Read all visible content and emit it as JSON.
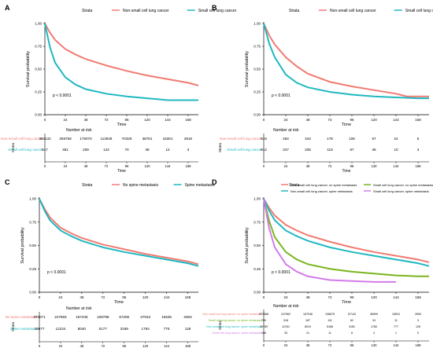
{
  "colors": {
    "red": "#f07b72",
    "teal": "#1fb8c1",
    "green": "#7ab51d",
    "violet": "#d27be8",
    "axis": "#000000"
  },
  "chart_data": [
    {
      "panel": "A",
      "type": "line",
      "legend_title": "Strata",
      "legend_position": "top",
      "xlabel": "Time",
      "ylabel": "Survival probability",
      "xticks": [
        0,
        24,
        48,
        72,
        96,
        120,
        144,
        168
      ],
      "yticks": [
        "0.00",
        "0.25",
        "0.50",
        "0.75",
        "1.00"
      ],
      "xlim": [
        0,
        180
      ],
      "ylim": [
        0,
        1
      ],
      "pvalue": "p < 0.0001",
      "risk_title": "Number at risk",
      "risk_x": [
        0,
        24,
        48,
        72,
        96,
        120,
        144,
        168
      ],
      "series": [
        {
          "name": "Non-small cell lung cancer",
          "color": "#f07b72",
          "x": [
            0,
            6,
            12,
            24,
            36,
            48,
            72,
            96,
            120,
            144,
            168,
            180
          ],
          "y": [
            1.0,
            0.9,
            0.82,
            0.72,
            0.66,
            0.61,
            0.54,
            0.48,
            0.43,
            0.39,
            0.35,
            0.32
          ],
          "risk": [
            "392132",
            "259758",
            "175070",
            "113846",
            "70329",
            "38781",
            "16301",
            "2816"
          ]
        },
        {
          "name": "Small cell lung cancer",
          "color": "#1fb8c1",
          "x": [
            0,
            6,
            12,
            24,
            36,
            48,
            72,
            96,
            120,
            144,
            168,
            180
          ],
          "y": [
            1.0,
            0.74,
            0.57,
            0.41,
            0.33,
            0.28,
            0.23,
            0.2,
            0.18,
            0.16,
            0.16,
            0.16
          ],
          "risk": [
            "617",
            "351",
            "208",
            "122",
            "70",
            "38",
            "12",
            "3"
          ]
        }
      ]
    },
    {
      "panel": "B",
      "type": "line",
      "legend_title": "Strata",
      "legend_position": "top",
      "xlabel": "Time",
      "ylabel": "Survival probability",
      "xticks": [
        0,
        24,
        48,
        72,
        96,
        120,
        144,
        168
      ],
      "yticks": [
        "0.00",
        "0.25",
        "0.50",
        "0.75",
        "1.00"
      ],
      "xlim": [
        0,
        180
      ],
      "ylim": [
        0,
        1
      ],
      "pvalue": "p < 0.0001",
      "risk_title": "Number at risk",
      "risk_x": [
        0,
        24,
        48,
        72,
        96,
        120,
        144,
        168
      ],
      "series": [
        {
          "name": "Non-small cell lung cancer",
          "color": "#f07b72",
          "x": [
            0,
            6,
            12,
            24,
            36,
            48,
            72,
            96,
            120,
            144,
            156,
            168,
            180
          ],
          "y": [
            1.0,
            0.87,
            0.77,
            0.63,
            0.53,
            0.45,
            0.36,
            0.31,
            0.27,
            0.23,
            0.2,
            0.2,
            0.2
          ],
          "risk": [
            "819",
            "484",
            "310",
            "178",
            "106",
            "57",
            "24",
            "5"
          ]
        },
        {
          "name": "Small cell lung cancer",
          "color": "#1fb8c1",
          "x": [
            0,
            6,
            12,
            24,
            36,
            48,
            72,
            96,
            120,
            144,
            168,
            180
          ],
          "y": [
            1.0,
            0.78,
            0.63,
            0.44,
            0.35,
            0.3,
            0.25,
            0.22,
            0.2,
            0.19,
            0.18,
            0.18
          ],
          "risk": [
            "812",
            "347",
            "205",
            "119",
            "67",
            "36",
            "10",
            "3"
          ]
        }
      ]
    },
    {
      "panel": "C",
      "type": "line",
      "legend_title": "Strata",
      "legend_position": "top",
      "xlabel": "Time",
      "ylabel": "Survival probability",
      "xticks": [
        0,
        24,
        48,
        72,
        96,
        120,
        144,
        168
      ],
      "yticks": [
        "0.00",
        "0.25",
        "0.50",
        "0.75",
        "1.00"
      ],
      "xlim": [
        0,
        180
      ],
      "ylim": [
        0,
        1
      ],
      "pvalue": "p < 0.0001",
      "risk_title": "Number at risk",
      "risk_x": [
        0,
        24,
        48,
        72,
        96,
        120,
        144,
        168
      ],
      "series": [
        {
          "name": "No spine metastasis",
          "color": "#f07b72",
          "x": [
            0,
            6,
            12,
            24,
            36,
            48,
            72,
            96,
            120,
            144,
            168,
            180
          ],
          "y": [
            1.0,
            0.89,
            0.8,
            0.69,
            0.63,
            0.58,
            0.51,
            0.46,
            0.41,
            0.37,
            0.33,
            0.3
          ],
          "risk": [
            "373071",
            "247883",
            "167236",
            "108788",
            "67206",
            "37033",
            "15535",
            "2693"
          ]
        },
        {
          "name": "Spine metastasis",
          "color": "#1fb8c1",
          "x": [
            0,
            6,
            12,
            24,
            36,
            48,
            72,
            96,
            120,
            144,
            168,
            180
          ],
          "y": [
            1.0,
            0.87,
            0.77,
            0.66,
            0.6,
            0.55,
            0.48,
            0.43,
            0.39,
            0.35,
            0.31,
            0.28
          ],
          "risk": [
            "19677",
            "12224",
            "8040",
            "5177",
            "3189",
            "1784",
            "776",
            "126"
          ]
        }
      ]
    },
    {
      "panel": "D",
      "type": "line",
      "legend_title": "Strata",
      "legend_position": "top",
      "xlabel": "Time",
      "ylabel": "Survival probability",
      "xticks": [
        0,
        24,
        48,
        72,
        96,
        120,
        144,
        168
      ],
      "yticks": [
        "0.00",
        "0.25",
        "0.50",
        "0.75",
        "1.00"
      ],
      "xlim": [
        0,
        180
      ],
      "ylim": [
        0,
        1
      ],
      "pvalue": "p < 0.0001",
      "risk_title": "Number at risk",
      "risk_x": [
        0,
        24,
        48,
        72,
        96,
        120,
        144,
        168
      ],
      "series": [
        {
          "name": "Non-small cell lung cancer, no spine metastasis",
          "color": "#f07b72",
          "x": [
            0,
            6,
            12,
            24,
            36,
            48,
            72,
            96,
            120,
            144,
            168,
            180
          ],
          "y": [
            1.0,
            0.9,
            0.82,
            0.72,
            0.66,
            0.61,
            0.54,
            0.48,
            0.43,
            0.39,
            0.35,
            0.32
          ],
          "risk": [
            "373588",
            "247562",
            "167046",
            "108675",
            "67143",
            "36999",
            "15524",
            "2690"
          ]
        },
        {
          "name": "Small cell lung cancer, no spine metastasis",
          "color": "#7ab51d",
          "x": [
            0,
            6,
            12,
            24,
            36,
            48,
            72,
            96,
            120,
            144,
            168,
            180
          ],
          "y": [
            1.0,
            0.76,
            0.59,
            0.43,
            0.35,
            0.3,
            0.25,
            0.22,
            0.2,
            0.18,
            0.17,
            0.17
          ],
          "risk": [
            "709",
            "318",
            "187",
            "111",
            "62",
            "34",
            "11",
            "3"
          ]
        },
        {
          "name": "Non-small cell lung cancer, spine metastasis",
          "color": "#1fb8c1",
          "x": [
            0,
            6,
            12,
            24,
            36,
            48,
            72,
            96,
            120,
            144,
            168,
            180
          ],
          "y": [
            1.0,
            0.87,
            0.77,
            0.66,
            0.6,
            0.55,
            0.48,
            0.43,
            0.39,
            0.35,
            0.31,
            0.28
          ],
          "risk": [
            "19789",
            "12151",
            "8019",
            "5166",
            "3181",
            "1780",
            "777",
            "126"
          ]
        },
        {
          "name": "Small cell lung cancer, spine metastasis",
          "color": "#d27be8",
          "x": [
            0,
            6,
            12,
            24,
            36,
            48,
            72,
            96,
            120,
            144
          ],
          "y": [
            1.0,
            0.68,
            0.48,
            0.3,
            0.22,
            0.17,
            0.13,
            0.12,
            0.11,
            0.11
          ],
          "risk": [
            "108",
            "33",
            "21",
            "11",
            "8",
            "4",
            "1",
            "0"
          ]
        }
      ]
    }
  ]
}
